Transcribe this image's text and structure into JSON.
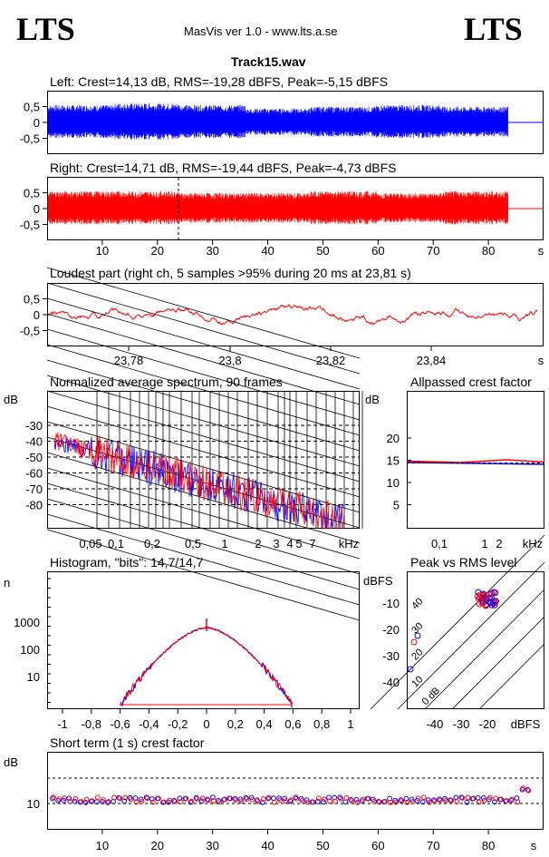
{
  "header": {
    "logo_left": "LTS",
    "logo_right": "LTS",
    "app_title": "MasVis ver 1.0 - www.lts.a.se",
    "file_name": "Track15.wav"
  },
  "colors": {
    "left": "#0000ff",
    "right": "#ff0000",
    "axis": "#000000"
  },
  "chart_data": [
    {
      "type": "line",
      "name": "left-waveform",
      "title": "Left: Crest=14,13 dB, RMS=-19,28 dBFS, Peak=-5,15 dBFS",
      "yticks": [
        "0,5",
        "0",
        "-0,5"
      ],
      "ylim": [
        -1,
        1
      ],
      "xlim": [
        0,
        90
      ],
      "amplitude_profile": [
        0.5,
        0.55,
        0.5,
        0.4,
        0.45,
        0.5,
        0.45
      ],
      "color": "#0000ff"
    },
    {
      "type": "line",
      "name": "right-waveform",
      "title": "Right: Crest=14,71 dB, RMS=-19,44 dBFS, Peak=-4,73 dBFS",
      "yticks": [
        "0,5",
        "0",
        "-0,5"
      ],
      "ylim": [
        -1,
        1
      ],
      "xlim": [
        0,
        90
      ],
      "marker_x": 23.81,
      "xticks": [
        "10",
        "20",
        "30",
        "40",
        "50",
        "60",
        "70",
        "80"
      ],
      "xunit": "s",
      "color": "#ff0000"
    },
    {
      "type": "line",
      "name": "loudest-part",
      "title": "Loudest part (right ch, 5 samples >95% during 20 ms at 23,81 s)",
      "yticks": [
        "0,5",
        "0",
        "-0,5"
      ],
      "xticks": [
        "23,78",
        "23,8",
        "23,82",
        "23,84"
      ],
      "xunit": "s",
      "color": "#ff0000"
    },
    {
      "type": "line",
      "name": "spectrum",
      "title": "Normalized average spectrum, 90 frames",
      "ylabel": "dB",
      "yticks": [
        "-30",
        "-40",
        "-50",
        "-60",
        "-70",
        "-80"
      ],
      "xticks": [
        "0,05",
        "0,1",
        "0,2",
        "0,5",
        "1",
        "2",
        "3",
        "4",
        "5",
        "7"
      ],
      "xunit": "kHz"
    },
    {
      "type": "line",
      "name": "allpassed-crest",
      "title": "Allpassed crest factor",
      "ylabel": "dB",
      "yticks": [
        "20",
        "15",
        "10",
        "5"
      ],
      "xticks": [
        "0,1",
        "1",
        "2"
      ],
      "xunit": "kHz",
      "left_value": 14.5,
      "right_value": 14.8
    },
    {
      "type": "line",
      "name": "histogram",
      "title": "Histogram, \"bits\": 14,7/14,7",
      "ylabel": "n",
      "yticks": [
        "1000",
        "100",
        "10"
      ],
      "xticks": [
        "-1",
        "-0,8",
        "-0,6",
        "-0,4",
        "-0,2",
        "0",
        "0,2",
        "0,4",
        "0,6",
        "0,8",
        "1"
      ]
    },
    {
      "type": "scatter",
      "name": "peak-vs-rms",
      "title": "Peak vs RMS level",
      "ylabel": "dBFS",
      "yticks": [
        "-10",
        "-20",
        "-30",
        "-40"
      ],
      "xticks": [
        "-40",
        "-30",
        "-20"
      ],
      "xunit": "dBFS",
      "diag_labels": [
        "40",
        "30",
        "20",
        "10",
        "0 dB"
      ]
    },
    {
      "type": "scatter",
      "name": "short-term-crest",
      "title": "Short term (1 s) crest factor",
      "ylabel": "dB",
      "yticks": [
        "10"
      ],
      "xticks": [
        "10",
        "20",
        "30",
        "40",
        "50",
        "60",
        "70",
        "80"
      ],
      "xunit": "s"
    }
  ]
}
